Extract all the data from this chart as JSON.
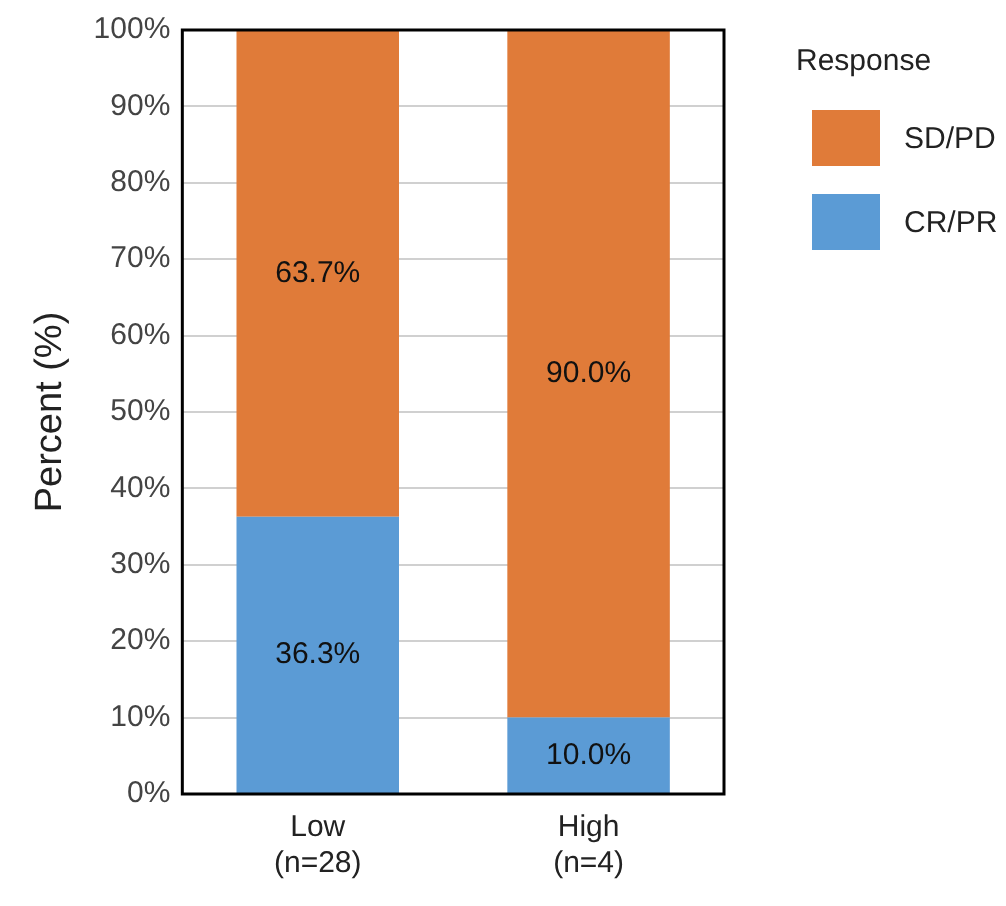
{
  "chart_data": {
    "type": "bar",
    "stacked": true,
    "ylabel": "Percent (%)",
    "legend_title": "Response",
    "legend": "right",
    "categories": [
      "Low\n(n=28)",
      "High\n(n=4)"
    ],
    "series": [
      {
        "name": "CR/PR",
        "color": "#5b9bd5",
        "values": [
          36.3,
          10.0
        ],
        "value_labels": [
          "36.3%",
          "10.0%"
        ]
      },
      {
        "name": "SD/PD",
        "color": "#e07b39",
        "values": [
          63.7,
          90.0
        ],
        "value_labels": [
          "63.7%",
          "90.0%"
        ]
      }
    ],
    "ylim": [
      0,
      100
    ],
    "yticks": [
      {
        "value": 0,
        "label": "0%"
      },
      {
        "value": 10,
        "label": "10%"
      },
      {
        "value": 20,
        "label": "20%"
      },
      {
        "value": 30,
        "label": "30%"
      },
      {
        "value": 40,
        "label": "40%"
      },
      {
        "value": 50,
        "label": "50%"
      },
      {
        "value": 60,
        "label": "60%"
      },
      {
        "value": 70,
        "label": "70%"
      },
      {
        "value": 80,
        "label": "80%"
      },
      {
        "value": 90,
        "label": "90%"
      },
      {
        "value": 100,
        "label": "100%"
      }
    ],
    "grid": "y"
  }
}
